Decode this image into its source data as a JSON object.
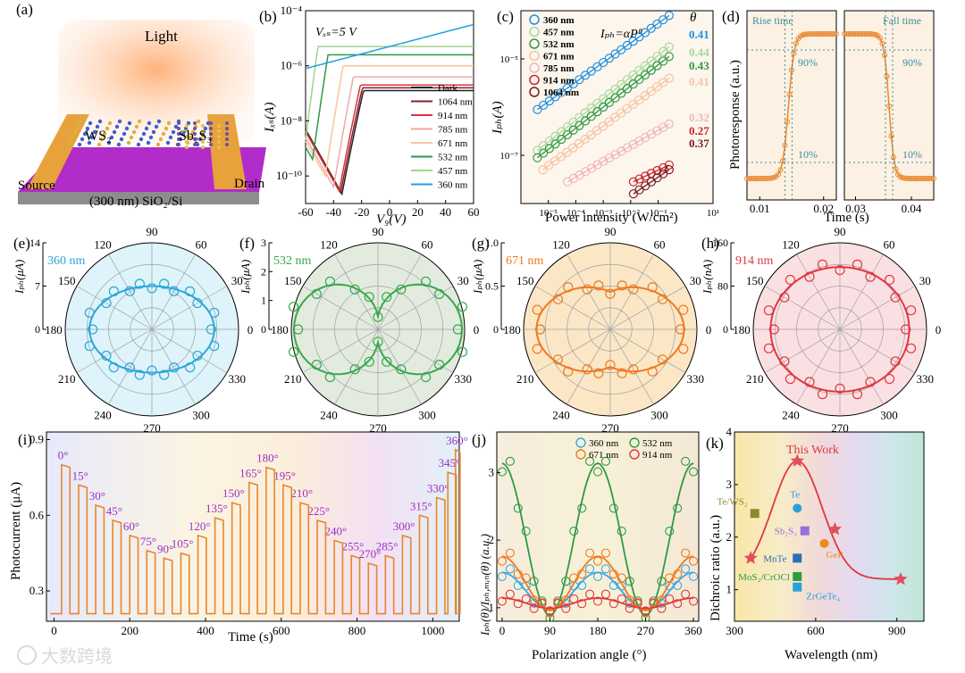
{
  "panels": {
    "a": {
      "label": "(a)",
      "light": "Light",
      "ws2": "WS₂",
      "sb2s3": "Sb₂S₃",
      "source": "Source",
      "drain": "Drain",
      "substrate": "(300 nm) SiO₂/Si"
    },
    "b": {
      "label": "(b)",
      "vds": "Vₓₛ=5 V",
      "ylabel": "Iₓₛ(A)",
      "xlabel": "V₉(V)"
    },
    "c": {
      "label": "(c)",
      "formula": "Iₚₕ=αPᶿ",
      "ylabel": "Iₚₕ(A)",
      "xlabel": "Power intensity (W/cm²)",
      "theta": "θ"
    },
    "d": {
      "label": "(d)",
      "rise": "Rise time",
      "fall": "Fall time",
      "p90": "90%",
      "p10": "10%",
      "ylabel": "Photoresponse (a.u.)",
      "xlabel": "Time (s)"
    },
    "e": {
      "label": "(e)",
      "wl": "360 nm",
      "ylabel": "Iₚₕ(μA)",
      "color": "#2aa7d6",
      "bg": "#dff3fb"
    },
    "f": {
      "label": "(f)",
      "wl": "532 nm",
      "ylabel": "Iₚₕ(μA)",
      "color": "#38a84a",
      "bg": "#e3ebdf"
    },
    "g": {
      "label": "(g)",
      "wl": "671 nm",
      "ylabel": "Iₚₕ(μA)",
      "color": "#ef7a1f",
      "bg": "#fbe7c6"
    },
    "h": {
      "label": "(h)",
      "wl": "914 nm",
      "ylabel": "Iₚₕ(nA)",
      "color": "#e0383f",
      "bg": "#fbe0e3"
    },
    "i": {
      "label": "(i)",
      "ylabel": "Photocurrent (μA)",
      "xlabel": "Time (s)"
    },
    "j": {
      "label": "(j)",
      "ylabel": "Iₚₕ(θ)/Iₚₕ,ₘᵢₙ(θ) (a.u.)",
      "xlabel": "Polarization angle (°)"
    },
    "k": {
      "label": "(k)",
      "ylabel": "Dichroic ratio (a.u.)",
      "xlabel": "Wavelength (nm)",
      "this_work": "This Work"
    }
  },
  "watermark": "大数跨境",
  "chart_data": [
    {
      "panel": "b",
      "type": "line",
      "title": "",
      "xlabel": "Vg(V)",
      "ylabel": "Ids(A)",
      "xlim": [
        -60,
        60
      ],
      "ylim_log": [
        -11,
        -4
      ],
      "yscale": "log",
      "xticks": [
        -60,
        -40,
        -20,
        0,
        20,
        40,
        60
      ],
      "yticks": [
        "10⁻¹⁰",
        "10⁻⁸",
        "10⁻⁶",
        "10⁻⁴"
      ],
      "legend_position": "right",
      "series": [
        {
          "name": "Dark",
          "color": "#222222",
          "vmin": -34,
          "logmin": -10.65,
          "slope": 0.26,
          "logmax": -6.9
        },
        {
          "name": "1064 nm",
          "color": "#8c1c2a",
          "vmin": -35,
          "logmin": -10.6,
          "slope": 0.26,
          "logmax": -6.8
        },
        {
          "name": "914 nm",
          "color": "#d6353c",
          "vmin": -36,
          "logmin": -10.55,
          "slope": 0.27,
          "logmax": -6.7
        },
        {
          "name": "785 nm",
          "color": "#f3a6aa",
          "vmin": -40,
          "logmin": -10.4,
          "slope": 0.3,
          "logmax": -6.4
        },
        {
          "name": "671 nm",
          "color": "#f7c79a",
          "vmin": -46,
          "logmin": -10.0,
          "slope": 0.33,
          "logmax": -6.0
        },
        {
          "name": "532 nm",
          "color": "#2e9a45",
          "vmin": -55,
          "logmin": -9.4,
          "slope": 0.36,
          "logmax": -5.6
        },
        {
          "name": "457 nm",
          "color": "#9fd48a",
          "vmin": -60,
          "logmin": -8.7,
          "slope": 0.4,
          "logmax": -5.3
        },
        {
          "name": "360 nm",
          "color": "#1fa0e0",
          "vmin": -60,
          "logmin": -6.1,
          "slope": 0.06,
          "logmax": -4.5
        }
      ]
    },
    {
      "panel": "c",
      "type": "scatter",
      "title": "",
      "xlabel": "Power intensity (W/cm²)",
      "ylabel": "Iph(A)",
      "yscale": "log",
      "xscale": "log",
      "xlim_log": [
        -6,
        1
      ],
      "ylim_log": [
        -8,
        -4
      ],
      "xticks": [
        "10⁻⁵",
        "10⁻⁴",
        "10⁻³",
        "10⁻²",
        "10⁻¹",
        "10¹"
      ],
      "yticks": [
        "10⁻⁷",
        "10⁻⁵"
      ],
      "series": [
        {
          "name": "360 nm",
          "theta": "0.41",
          "color": "#1f8fe0",
          "x0": -5.4,
          "x1": -0.6,
          "y0": -6.05,
          "y1": -4.1
        },
        {
          "name": "457 nm",
          "theta": "0.44",
          "color": "#a8d79a",
          "x0": -5.4,
          "x1": -0.6,
          "y0": -6.9,
          "y1": -4.75
        },
        {
          "name": "532 nm",
          "theta": "0.43",
          "color": "#2e9a45",
          "x0": -5.4,
          "x1": -0.6,
          "y0": -7.05,
          "y1": -4.95
        },
        {
          "name": "671 nm",
          "theta": "0.41",
          "color": "#f5c3a0",
          "x0": -5.2,
          "x1": -0.6,
          "y0": -7.3,
          "y1": -5.4
        },
        {
          "name": "785 nm",
          "theta": "0.32",
          "color": "#f2b5bd",
          "x0": -4.3,
          "x1": -0.6,
          "y0": -7.55,
          "y1": -6.35
        },
        {
          "name": "914 nm",
          "theta": "0.27",
          "color": "#c8262e",
          "x0": -1.9,
          "x1": -0.6,
          "y0": -7.55,
          "y1": -7.2
        },
        {
          "name": "1064 nm",
          "theta": "0.37",
          "color": "#7a1c25",
          "x0": -1.9,
          "x1": -0.6,
          "y0": -7.8,
          "y1": -7.3
        }
      ]
    },
    {
      "panel": "d",
      "type": "line",
      "title": "",
      "rise": {
        "xlim": [
          0.008,
          0.022
        ],
        "xticks": [
          "0.01",
          "0.02"
        ],
        "edge": 0.0145
      },
      "fall": {
        "xlim": [
          0.028,
          0.044
        ],
        "xticks": [
          "0.03",
          "0.04"
        ],
        "edge": 0.036
      },
      "xlabel": "Time (s)",
      "ylabel": "Photoresponse (a.u.)"
    },
    {
      "panel": "e-h",
      "type": "polar",
      "title": "",
      "angle_ticks": [
        "90",
        "60",
        "30",
        "0",
        "330",
        "300",
        "270",
        "240",
        "210",
        "180",
        "150",
        "120"
      ],
      "series": [
        {
          "panel": "e",
          "name": "360 nm",
          "radial_ticks": [
            "0",
            "7",
            "14"
          ],
          "a": 0.72,
          "b": 0.5,
          "dumbbell": 0
        },
        {
          "panel": "f",
          "name": "532 nm",
          "radial_ticks": [
            "0",
            "1",
            "2",
            "3"
          ],
          "a": 0.82,
          "b": 0.25,
          "dumbbell": 1
        },
        {
          "panel": "g",
          "name": "671 nm",
          "radial_ticks": [
            "0",
            "0.5",
            "1.0"
          ],
          "a": 0.78,
          "b": 0.48,
          "dumbbell": 0.25
        },
        {
          "panel": "h",
          "name": "914 nm",
          "radial_ticks": [
            "0",
            "80",
            "160"
          ],
          "a": 0.8,
          "b": 0.72,
          "dumbbell": 0
        }
      ]
    },
    {
      "panel": "i",
      "type": "line",
      "title": "",
      "xlabel": "Time (s)",
      "ylabel": "Photocurrent (μA)",
      "xlim": [
        -20,
        1070
      ],
      "ylim": [
        0.18,
        0.93
      ],
      "xticks": [
        0,
        200,
        400,
        600,
        800,
        1000
      ],
      "yticks": [
        0.3,
        0.6,
        0.9
      ],
      "baseline": 0.21,
      "angles": [
        "0°",
        "15°",
        "30°",
        "45°",
        "60°",
        "75°",
        "90°",
        "105°",
        "120°",
        "135°",
        "150°",
        "165°",
        "180°",
        "195°",
        "210°",
        "225°",
        "240°",
        "255°",
        "270°",
        "285°",
        "300°",
        "315°",
        "330°",
        "345°",
        "360°"
      ],
      "pulse_start": [
        20,
        65,
        110,
        155,
        200,
        245,
        290,
        335,
        380,
        425,
        470,
        515,
        560,
        605,
        650,
        695,
        740,
        785,
        830,
        875,
        920,
        965,
        1010,
        1040,
        1060
      ],
      "pulse_peak": [
        0.8,
        0.72,
        0.64,
        0.58,
        0.52,
        0.46,
        0.43,
        0.45,
        0.52,
        0.59,
        0.65,
        0.73,
        0.79,
        0.72,
        0.65,
        0.58,
        0.5,
        0.44,
        0.41,
        0.44,
        0.52,
        0.6,
        0.67,
        0.77,
        0.86
      ]
    },
    {
      "panel": "j",
      "type": "scatter",
      "title": "",
      "xlabel": "Polarization angle (°)",
      "xlim": [
        -10,
        370
      ],
      "ylim": [
        0.8,
        3.6
      ],
      "xticks": [
        0,
        90,
        180,
        270,
        360
      ],
      "yticks": [
        1,
        2,
        3
      ],
      "series": [
        {
          "name": "360 nm",
          "color": "#3aa8e0",
          "amp": 0.55
        },
        {
          "name": "532 nm",
          "color": "#2e9a45",
          "amp": 2.25
        },
        {
          "name": "671 nm",
          "color": "#ef7a1f",
          "amp": 0.8
        },
        {
          "name": "914 nm",
          "color": "#e0383f",
          "amp": 0.15
        }
      ]
    },
    {
      "panel": "k",
      "type": "scatter",
      "title": "",
      "xlabel": "Wavelength (nm)",
      "ylabel": "Dichroic ratio (a.u.)",
      "xlim": [
        300,
        1000
      ],
      "ylim": [
        0.4,
        4
      ],
      "xticks": [
        300,
        600,
        900
      ],
      "yticks": [
        1,
        2,
        3,
        4
      ],
      "this_work": [
        {
          "x": 360,
          "y": 1.6
        },
        {
          "x": 532,
          "y": 3.45
        },
        {
          "x": 671,
          "y": 2.15
        },
        {
          "x": 914,
          "y": 1.2
        }
      ],
      "others": [
        {
          "name": "Te/WS₂",
          "x": 375,
          "y": 2.45
        },
        {
          "name": "Te",
          "x": 532,
          "y": 2.55
        },
        {
          "name": "Sb₂S₃",
          "x": 560,
          "y": 2.12
        },
        {
          "name": "GeP",
          "x": 632,
          "y": 1.88
        },
        {
          "name": "MnTe",
          "x": 532,
          "y": 1.6
        },
        {
          "name": "MoS₂/CrOCl",
          "x": 532,
          "y": 1.25
        },
        {
          "name": "ZrGeTe₄",
          "x": 532,
          "y": 1.05
        }
      ]
    }
  ]
}
